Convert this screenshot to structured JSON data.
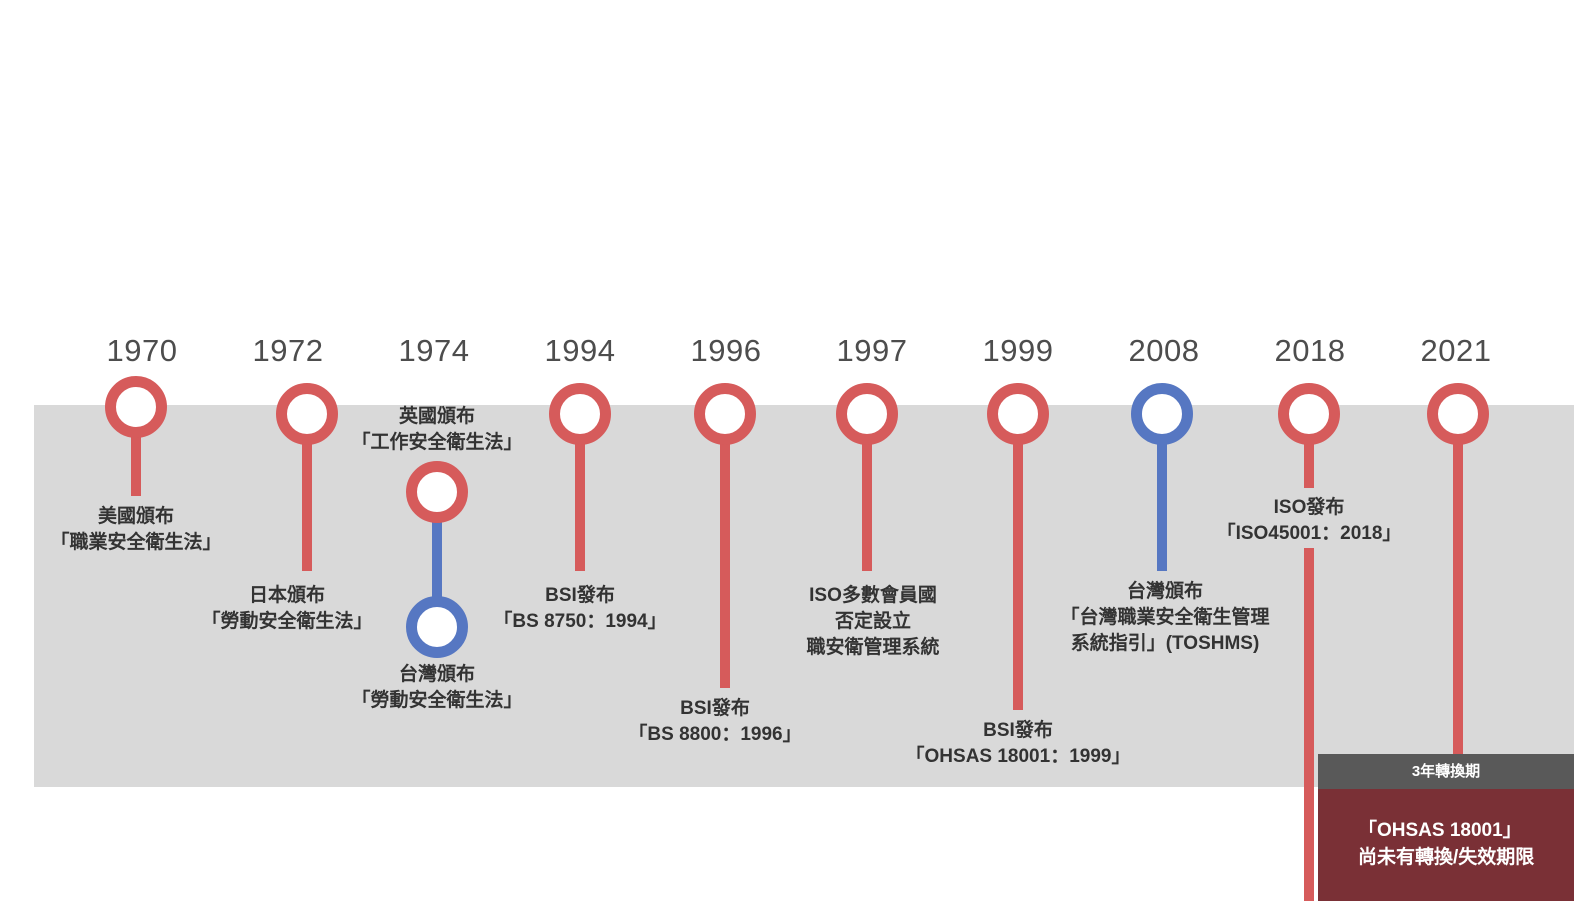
{
  "colors": {
    "band": "#d9d9d9",
    "red": "#d65b5b",
    "blue": "#5677c2",
    "dark_header": "#595959",
    "dark_box": "#7a3036"
  },
  "timeline": {
    "years": [
      "1970",
      "1972",
      "1974",
      "1994",
      "1996",
      "1997",
      "1999",
      "2008",
      "2018",
      "2021"
    ],
    "events": {
      "e1970": {
        "line1": "美國頒布",
        "line2": "「職業安全衛生法」"
      },
      "e1972": {
        "line1": "日本頒布",
        "line2": "「勞動安全衛生法」"
      },
      "e1974_uk": {
        "line1": "英國頒布",
        "line2": "「工作安全衛生法」"
      },
      "e1974_tw": {
        "line1": "台灣頒布",
        "line2": "「勞動安全衛生法」"
      },
      "e1994": {
        "line1": "BSI發布",
        "line2": "「BS 8750：1994」"
      },
      "e1996": {
        "line1": "BSI發布",
        "line2": "「BS 8800：1996」"
      },
      "e1997": {
        "line1": "ISO多數會員國",
        "line2": "否定設立",
        "line3": "職安衛管理系統"
      },
      "e1999": {
        "line1": "BSI發布",
        "line2": "「OHSAS 18001：1999」"
      },
      "e2008": {
        "line1": "台灣頒布",
        "line2": "「台灣職業安全衛生管理",
        "line3": "系統指引」(TOSHMS)"
      },
      "e2018": {
        "line1": "ISO發布",
        "line2": "「ISO45001：2018」"
      }
    },
    "transition": {
      "header": "3年轉換期",
      "line1": "「OHSAS 18001」",
      "line2": "尚未有轉換/失效期限"
    }
  }
}
